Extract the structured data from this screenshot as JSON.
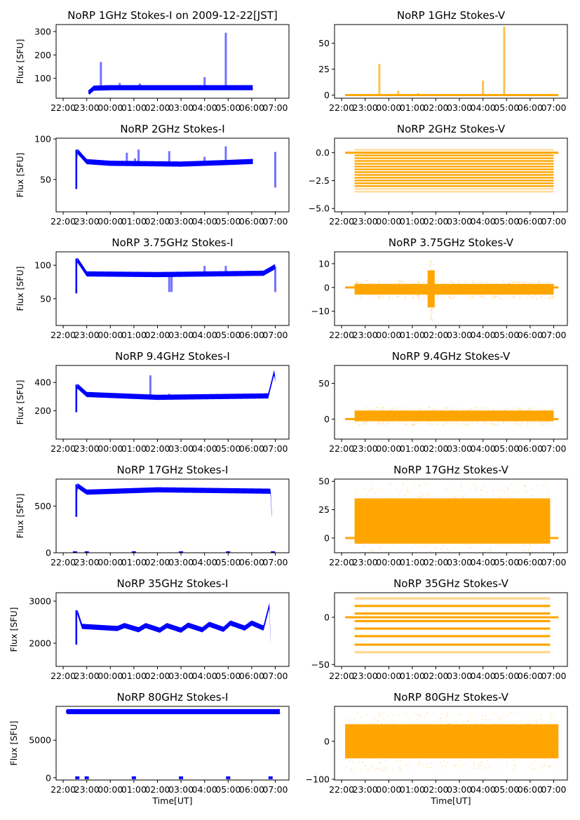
{
  "figure": {
    "title_prefix_note": "Top-left title includes date",
    "x_tick_labels": [
      "22:00",
      "23:00",
      "00:00",
      "01:00",
      "02:00",
      "03:00",
      "04:00",
      "05:00",
      "06:00",
      "07:00"
    ],
    "xlabel": "Time[UT]",
    "ylabel": "Flux [SFU]",
    "colors": {
      "stokes_i": "#0000ff",
      "stokes_v": "#ffa500"
    }
  },
  "chart_data": [
    {
      "type": "scatter",
      "title": "NoRP 1GHz Stokes-I on 2009-12-22[JST]",
      "ylabel": "Flux [SFU]",
      "xlabel": "",
      "series": "I",
      "ylim": [
        15,
        330
      ],
      "yticks": [
        100,
        200,
        300
      ],
      "ytick_labels": [
        "100",
        "200",
        "300"
      ],
      "x_range_hours": [
        23.1,
        30.05
      ],
      "baseline": [
        [
          23.1,
          40
        ],
        [
          23.3,
          58
        ],
        [
          24,
          60
        ],
        [
          30,
          60
        ]
      ],
      "spikes": [
        [
          23.6,
          170
        ],
        [
          24.4,
          80
        ],
        [
          25.25,
          78
        ],
        [
          28.0,
          105
        ],
        [
          28.9,
          295
        ]
      ]
    },
    {
      "type": "scatter",
      "title": "NoRP 1GHz Stokes-V",
      "ylabel": "",
      "xlabel": "",
      "series": "V",
      "ylim": [
        -3,
        68
      ],
      "yticks": [
        0,
        25,
        50
      ],
      "ytick_labels": [
        "0",
        "25",
        "50"
      ],
      "x_range_hours": [
        22.15,
        31.2
      ],
      "baseline": [
        [
          22.15,
          0
        ],
        [
          31.2,
          0
        ]
      ],
      "spikes": [
        [
          23.6,
          30
        ],
        [
          24.4,
          4
        ],
        [
          25.25,
          2
        ],
        [
          28.0,
          14
        ],
        [
          28.9,
          66
        ]
      ]
    },
    {
      "type": "scatter",
      "title": "NoRP 2GHz Stokes-I",
      "ylabel": "Flux [SFU]",
      "xlabel": "",
      "series": "I",
      "ylim": [
        10,
        101
      ],
      "yticks": [
        50,
        100
      ],
      "ytick_labels": [
        "50",
        "100"
      ],
      "x_range_hours": [
        22.55,
        30.05
      ],
      "baseline": [
        [
          22.55,
          40
        ],
        [
          22.6,
          85
        ],
        [
          23,
          72
        ],
        [
          24,
          70
        ],
        [
          27,
          69
        ],
        [
          29,
          71
        ],
        [
          30.7,
          73
        ],
        [
          30.95,
          88
        ],
        [
          31.0,
          84
        ]
      ],
      "spikes": [
        [
          24.7,
          83
        ],
        [
          25.05,
          76
        ],
        [
          25.2,
          87
        ],
        [
          26.5,
          85
        ],
        [
          28.0,
          78
        ],
        [
          28.9,
          91
        ],
        [
          31.0,
          40
        ]
      ]
    },
    {
      "type": "scatter",
      "title": "NoRP 2GHz Stokes-V",
      "ylabel": "",
      "xlabel": "",
      "series": "V",
      "ylim": [
        -5.3,
        1.3
      ],
      "yticks": [
        0.0,
        -2.5,
        -5.0
      ],
      "ytick_labels": [
        "0.0",
        "−2.5",
        "−5.0"
      ],
      "x_range_hours": [
        22.15,
        31.2
      ],
      "band": [
        -3.5,
        0.3
      ],
      "levels_step": 0.25
    },
    {
      "type": "scatter",
      "title": "NoRP 3.75GHz Stokes-I",
      "ylabel": "Flux [SFU]",
      "xlabel": "",
      "series": "I",
      "ylim": [
        10,
        120
      ],
      "yticks": [
        50,
        100
      ],
      "ytick_labels": [
        "50",
        "100"
      ],
      "x_range_hours": [
        22.55,
        31.0
      ],
      "baseline": [
        [
          22.55,
          60
        ],
        [
          22.6,
          108
        ],
        [
          23,
          87
        ],
        [
          26,
          86
        ],
        [
          30.5,
          88
        ],
        [
          31.0,
          98
        ]
      ],
      "spikes": [
        [
          26.5,
          60
        ],
        [
          26.6,
          60
        ],
        [
          28.0,
          99
        ],
        [
          28.9,
          99
        ],
        [
          31.0,
          60
        ]
      ]
    },
    {
      "type": "scatter",
      "title": "NoRP 3.75GHz Stokes-V",
      "ylabel": "",
      "xlabel": "",
      "series": "V",
      "ylim": [
        -16,
        15
      ],
      "yticks": [
        10,
        0,
        -10
      ],
      "ytick_labels": [
        "10",
        "0",
        "−10"
      ],
      "x_range_hours": [
        22.15,
        31.2
      ],
      "band": [
        -3,
        1.5
      ],
      "burst": [
        25.8,
        12,
        -14
      ]
    },
    {
      "type": "scatter",
      "title": "NoRP 9.4GHz Stokes-I",
      "ylabel": "Flux [SFU]",
      "xlabel": "",
      "series": "I",
      "ylim": [
        0,
        520
      ],
      "yticks": [
        200,
        400
      ],
      "ytick_labels": [
        "200",
        "400"
      ],
      "x_range_hours": [
        22.55,
        31.0
      ],
      "baseline": [
        [
          22.55,
          200
        ],
        [
          22.6,
          375
        ],
        [
          23,
          315
        ],
        [
          26,
          295
        ],
        [
          30.7,
          305
        ],
        [
          30.95,
          470
        ],
        [
          31.0,
          420
        ]
      ],
      "spikes": [
        [
          25.7,
          450
        ],
        [
          26.5,
          320
        ],
        [
          27.75,
          310
        ]
      ]
    },
    {
      "type": "scatter",
      "title": "NoRP 9.4GHz Stokes-V",
      "ylabel": "",
      "xlabel": "",
      "series": "V",
      "ylim": [
        -28,
        75
      ],
      "yticks": [
        0,
        50
      ],
      "ytick_labels": [
        "0",
        "50"
      ],
      "x_range_hours": [
        22.15,
        31.2
      ],
      "band": [
        -3,
        12
      ]
    },
    {
      "type": "scatter",
      "title": "NoRP 17GHz Stokes-I",
      "ylabel": "Flux [SFU]",
      "xlabel": "",
      "series": "I",
      "ylim": [
        0,
        790
      ],
      "yticks": [
        0,
        500
      ],
      "ytick_labels": [
        "0",
        "500"
      ],
      "x_range_hours": [
        22.55,
        30.85
      ],
      "baseline": [
        [
          22.55,
          400
        ],
        [
          22.6,
          720
        ],
        [
          23,
          650
        ],
        [
          26,
          675
        ],
        [
          30.8,
          660
        ],
        [
          30.85,
          400
        ]
      ],
      "zero_marks": [
        22.5,
        23.0,
        25.0,
        27.0,
        29.0,
        30.9
      ]
    },
    {
      "type": "scatter",
      "title": "NoRP 17GHz Stokes-V",
      "ylabel": "",
      "xlabel": "",
      "series": "V",
      "ylim": [
        -13,
        52
      ],
      "yticks": [
        0,
        25,
        50
      ],
      "ytick_labels": [
        "0",
        "25",
        "50"
      ],
      "x_range_hours": [
        22.15,
        31.2
      ],
      "band": [
        -5,
        35
      ]
    },
    {
      "type": "scatter",
      "title": "NoRP 35GHz Stokes-I",
      "ylabel": "Flux [SFU]",
      "xlabel": "",
      "series": "I",
      "ylim": [
        1450,
        3200
      ],
      "yticks": [
        2000,
        3000
      ],
      "ytick_labels": [
        "2000",
        "3000"
      ],
      "x_range_hours": [
        22.55,
        30.8
      ],
      "baseline": [
        [
          22.55,
          2000
        ],
        [
          22.6,
          2750
        ],
        [
          22.8,
          2400
        ],
        [
          24.3,
          2350
        ],
        [
          24.6,
          2420
        ],
        [
          25.2,
          2320
        ],
        [
          25.5,
          2420
        ],
        [
          26.1,
          2310
        ],
        [
          26.4,
          2420
        ],
        [
          27.0,
          2310
        ],
        [
          27.3,
          2430
        ],
        [
          27.9,
          2320
        ],
        [
          28.2,
          2450
        ],
        [
          28.8,
          2330
        ],
        [
          29.1,
          2480
        ],
        [
          29.7,
          2360
        ],
        [
          30.0,
          2480
        ],
        [
          30.5,
          2360
        ],
        [
          30.75,
          2900
        ],
        [
          30.8,
          2000
        ]
      ]
    },
    {
      "type": "scatter",
      "title": "NoRP 35GHz Stokes-V",
      "ylabel": "",
      "xlabel": "",
      "series": "V",
      "ylim": [
        -52,
        26
      ],
      "yticks": [
        0,
        -50
      ],
      "ytick_labels": [
        "0",
        "−50"
      ],
      "x_range_hours": [
        22.15,
        31.2
      ],
      "levels": [
        20,
        12,
        4,
        -4,
        -12,
        -20,
        -29,
        -37
      ]
    },
    {
      "type": "scatter",
      "title": "NoRP 80GHz Stokes-I",
      "ylabel": "Flux [SFU]",
      "xlabel": "Time[UT]",
      "series": "I",
      "ylim": [
        -300,
        9500
      ],
      "yticks": [
        0,
        5000
      ],
      "ytick_labels": [
        "0",
        "5000"
      ],
      "x_range_hours": [
        22.15,
        31.2
      ],
      "baseline": [
        [
          22.15,
          8800
        ],
        [
          31.2,
          8800
        ]
      ],
      "zero_marks": [
        22.6,
        23.0,
        25.0,
        27.0,
        29.0,
        30.8
      ]
    },
    {
      "type": "scatter",
      "title": "NoRP 80GHz Stokes-V",
      "ylabel": "",
      "xlabel": "Time[UT]",
      "series": "V",
      "ylim": [
        -102,
        92
      ],
      "yticks": [
        0,
        -100
      ],
      "ytick_labels": [
        "0",
        "−100"
      ],
      "x_range_hours": [
        22.15,
        31.2
      ],
      "band": [
        -45,
        45
      ]
    }
  ]
}
